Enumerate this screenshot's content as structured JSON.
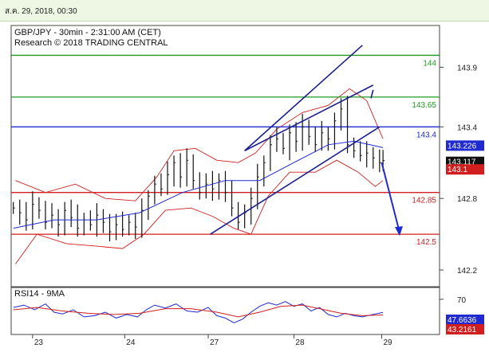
{
  "header": {
    "timestamp": "ส.ค. 29, 2018, 00:30"
  },
  "chart_data": [
    {
      "type": "candlestick",
      "title": "GBP/JPY - 30min - 2:31:00 AM (CET)",
      "subtitle": "Research © 2018 TRADING CENTRAL",
      "ylim": [
        142.06,
        144.25
      ],
      "y_ticks": [
        142.2,
        142.8,
        143.4,
        143.9
      ],
      "y_tick_labels": [
        "142.2",
        "142.8",
        "143.4",
        "143.9"
      ],
      "x_ticks": [
        {
          "label": "23",
          "pos": 0.05
        },
        {
          "label": "24",
          "pos": 0.265
        },
        {
          "label": "27",
          "pos": 0.46
        },
        {
          "label": "28",
          "pos": 0.66
        },
        {
          "label": "29",
          "pos": 0.865
        }
      ],
      "levels": [
        {
          "value": 144.0,
          "label": "144",
          "color": "#1f9a1f"
        },
        {
          "value": 143.65,
          "label": "143.65",
          "color": "#1f9a1f"
        },
        {
          "value": 143.4,
          "label": "143.4",
          "color": "#1f2ad1"
        },
        {
          "value": 142.85,
          "label": "142.85",
          "color": "#d11f1f"
        },
        {
          "value": 142.5,
          "label": "142.5",
          "color": "#d11f1f"
        }
      ],
      "price_tags": [
        {
          "value": 143.226,
          "label": "143.226",
          "color": "#1f2ad1"
        },
        {
          "value": 143.117,
          "label": "143.117",
          "color": "#111111"
        },
        {
          "value": 143.1,
          "label": "143.1",
          "color": "#d11f1f"
        }
      ],
      "channel_lines": [
        {
          "from": [
            0.465,
            142.5
          ],
          "to": [
            0.86,
            143.4
          ]
        },
        {
          "from": [
            0.545,
            143.2
          ],
          "to": [
            0.845,
            143.75
          ]
        },
        {
          "from": [
            0.84,
            143.64
          ],
          "to": [
            0.845,
            143.71
          ]
        }
      ],
      "forecast_arrow": {
        "from": [
          0.865,
          143.1
        ],
        "to": [
          0.905,
          142.5
        ],
        "color": "#1f2ad1"
      },
      "close_series": [
        [
          0.005,
          142.72
        ],
        [
          0.02,
          142.68
        ],
        [
          0.035,
          142.62
        ],
        [
          0.05,
          142.75
        ],
        [
          0.065,
          142.7
        ],
        [
          0.08,
          142.6
        ],
        [
          0.095,
          142.66
        ],
        [
          0.11,
          142.58
        ],
        [
          0.125,
          142.7
        ],
        [
          0.14,
          142.64
        ],
        [
          0.155,
          142.55
        ],
        [
          0.17,
          142.62
        ],
        [
          0.185,
          142.58
        ],
        [
          0.2,
          142.66
        ],
        [
          0.215,
          142.6
        ],
        [
          0.23,
          142.52
        ],
        [
          0.245,
          142.58
        ],
        [
          0.26,
          142.54
        ],
        [
          0.275,
          142.6
        ],
        [
          0.29,
          142.56
        ],
        [
          0.305,
          142.7
        ],
        [
          0.32,
          142.82
        ],
        [
          0.335,
          142.92
        ],
        [
          0.35,
          142.88
        ],
        [
          0.365,
          143.0
        ],
        [
          0.38,
          143.1
        ],
        [
          0.395,
          142.98
        ],
        [
          0.41,
          143.12
        ],
        [
          0.425,
          142.95
        ],
        [
          0.44,
          142.85
        ],
        [
          0.455,
          142.92
        ],
        [
          0.47,
          142.88
        ],
        [
          0.485,
          142.95
        ],
        [
          0.5,
          142.85
        ],
        [
          0.515,
          142.72
        ],
        [
          0.53,
          142.6
        ],
        [
          0.545,
          142.68
        ],
        [
          0.56,
          142.8
        ],
        [
          0.575,
          142.98
        ],
        [
          0.59,
          143.1
        ],
        [
          0.605,
          143.25
        ],
        [
          0.62,
          143.3
        ],
        [
          0.635,
          143.22
        ],
        [
          0.65,
          143.35
        ],
        [
          0.665,
          143.28
        ],
        [
          0.68,
          143.4
        ],
        [
          0.695,
          143.32
        ],
        [
          0.71,
          143.25
        ],
        [
          0.725,
          143.35
        ],
        [
          0.74,
          143.3
        ],
        [
          0.755,
          143.45
        ],
        [
          0.77,
          143.55
        ],
        [
          0.785,
          143.25
        ],
        [
          0.8,
          143.2
        ],
        [
          0.815,
          143.16
        ],
        [
          0.83,
          143.18
        ],
        [
          0.845,
          143.14
        ],
        [
          0.86,
          143.1
        ],
        [
          0.868,
          143.117
        ]
      ],
      "ma_series": [
        [
          0.005,
          142.55
        ],
        [
          0.1,
          142.62
        ],
        [
          0.2,
          142.62
        ],
        [
          0.3,
          142.68
        ],
        [
          0.4,
          142.85
        ],
        [
          0.5,
          142.95
        ],
        [
          0.58,
          142.95
        ],
        [
          0.66,
          143.1
        ],
        [
          0.74,
          143.25
        ],
        [
          0.8,
          143.28
        ],
        [
          0.868,
          143.226
        ]
      ],
      "band_upper": [
        [
          0.01,
          142.95
        ],
        [
          0.08,
          142.85
        ],
        [
          0.15,
          142.92
        ],
        [
          0.22,
          142.8
        ],
        [
          0.29,
          142.78
        ],
        [
          0.34,
          142.98
        ],
        [
          0.38,
          143.2
        ],
        [
          0.43,
          143.22
        ],
        [
          0.48,
          143.12
        ],
        [
          0.53,
          143.1
        ],
        [
          0.57,
          143.18
        ],
        [
          0.62,
          143.38
        ],
        [
          0.68,
          143.52
        ],
        [
          0.74,
          143.58
        ],
        [
          0.79,
          143.72
        ],
        [
          0.83,
          143.62
        ],
        [
          0.868,
          143.3
        ]
      ],
      "band_lower": [
        [
          0.01,
          142.25
        ],
        [
          0.06,
          142.5
        ],
        [
          0.13,
          142.42
        ],
        [
          0.2,
          142.4
        ],
        [
          0.26,
          142.38
        ],
        [
          0.31,
          142.5
        ],
        [
          0.36,
          142.7
        ],
        [
          0.42,
          142.72
        ],
        [
          0.47,
          142.65
        ],
        [
          0.52,
          142.55
        ],
        [
          0.56,
          142.5
        ],
        [
          0.6,
          142.82
        ],
        [
          0.65,
          143.02
        ],
        [
          0.71,
          143.02
        ],
        [
          0.76,
          143.12
        ],
        [
          0.81,
          143.02
        ],
        [
          0.85,
          142.9
        ],
        [
          0.868,
          142.95
        ]
      ]
    },
    {
      "type": "line",
      "title": "RSI14 - 9MA",
      "ylim": [
        10,
        90
      ],
      "y_ticks": [
        70
      ],
      "y_tick_labels": [
        "70"
      ],
      "price_tags": [
        {
          "value": 47.6636,
          "label": "47.6636",
          "color": "#1f2ad1"
        },
        {
          "value": 43.2161,
          "label": "43.2161",
          "color": "#d11f1f"
        }
      ],
      "series": [
        {
          "values": [
            [
              0.005,
              56
            ],
            [
              0.03,
              60
            ],
            [
              0.055,
              52
            ],
            [
              0.08,
              62
            ],
            [
              0.1,
              48
            ],
            [
              0.12,
              45
            ],
            [
              0.145,
              52
            ],
            [
              0.17,
              40
            ],
            [
              0.195,
              42
            ],
            [
              0.22,
              48
            ],
            [
              0.245,
              38
            ],
            [
              0.27,
              44
            ],
            [
              0.295,
              40
            ],
            [
              0.315,
              52
            ],
            [
              0.335,
              60
            ],
            [
              0.36,
              55
            ],
            [
              0.385,
              62
            ],
            [
              0.41,
              50
            ],
            [
              0.435,
              48
            ],
            [
              0.46,
              56
            ],
            [
              0.48,
              42
            ],
            [
              0.5,
              38
            ],
            [
              0.52,
              30
            ],
            [
              0.54,
              36
            ],
            [
              0.56,
              48
            ],
            [
              0.58,
              58
            ],
            [
              0.6,
              64
            ],
            [
              0.62,
              60
            ],
            [
              0.64,
              66
            ],
            [
              0.66,
              58
            ],
            [
              0.68,
              62
            ],
            [
              0.7,
              50
            ],
            [
              0.72,
              56
            ],
            [
              0.74,
              44
            ],
            [
              0.76,
              40
            ],
            [
              0.78,
              46
            ],
            [
              0.8,
              42
            ],
            [
              0.82,
              40
            ],
            [
              0.845,
              44
            ],
            [
              0.868,
              47.66
            ]
          ],
          "color": "#1f2ad1"
        },
        {
          "values": [
            [
              0.005,
              52
            ],
            [
              0.06,
              56
            ],
            [
              0.12,
              50
            ],
            [
              0.18,
              46
            ],
            [
              0.24,
              44
            ],
            [
              0.3,
              46
            ],
            [
              0.36,
              54
            ],
            [
              0.42,
              54
            ],
            [
              0.48,
              48
            ],
            [
              0.53,
              40
            ],
            [
              0.58,
              48
            ],
            [
              0.63,
              58
            ],
            [
              0.68,
              60
            ],
            [
              0.72,
              54
            ],
            [
              0.77,
              46
            ],
            [
              0.82,
              42
            ],
            [
              0.868,
              43.22
            ]
          ],
          "color": "#d11f1f"
        }
      ]
    }
  ]
}
